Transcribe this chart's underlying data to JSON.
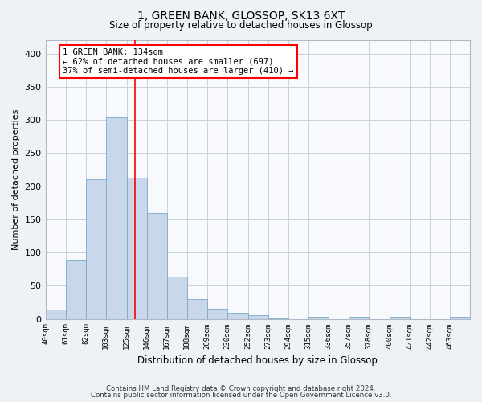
{
  "title": "1, GREEN BANK, GLOSSOP, SK13 6XT",
  "subtitle": "Size of property relative to detached houses in Glossop",
  "xlabel": "Distribution of detached houses by size in Glossop",
  "ylabel": "Number of detached properties",
  "bins": [
    "40sqm",
    "61sqm",
    "82sqm",
    "103sqm",
    "125sqm",
    "146sqm",
    "167sqm",
    "188sqm",
    "209sqm",
    "230sqm",
    "252sqm",
    "273sqm",
    "294sqm",
    "315sqm",
    "336sqm",
    "357sqm",
    "378sqm",
    "400sqm",
    "421sqm",
    "442sqm",
    "463sqm"
  ],
  "bin_edges": [
    40,
    61,
    82,
    103,
    125,
    146,
    167,
    188,
    209,
    230,
    252,
    273,
    294,
    315,
    336,
    357,
    378,
    400,
    421,
    442,
    463,
    484
  ],
  "bar_heights": [
    14,
    88,
    210,
    304,
    213,
    160,
    64,
    30,
    15,
    9,
    5,
    1,
    0,
    3,
    0,
    3,
    0,
    3,
    0,
    0,
    3
  ],
  "bar_color": "#c8d8ea",
  "bar_edgecolor": "#7aaac8",
  "red_line_x": 134,
  "annotation_line1": "1 GREEN BANK: 134sqm",
  "annotation_line2": "← 62% of detached houses are smaller (697)",
  "annotation_line3": "37% of semi-detached houses are larger (410) →",
  "annotation_box_color": "white",
  "annotation_box_edgecolor": "red",
  "ylim": [
    0,
    420
  ],
  "yticks": [
    0,
    50,
    100,
    150,
    200,
    250,
    300,
    350,
    400
  ],
  "footer_line1": "Contains HM Land Registry data © Crown copyright and database right 2024.",
  "footer_line2": "Contains public sector information licensed under the Open Government Licence v3.0.",
  "bg_color": "#eef2f7",
  "plot_bg_color": "#f7f9fc",
  "grid_color": "#c8d0dc"
}
